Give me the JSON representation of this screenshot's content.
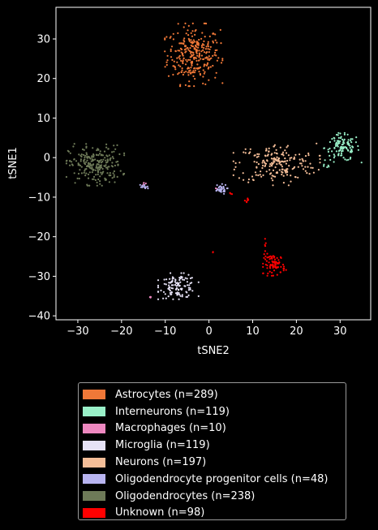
{
  "chart_data": {
    "type": "scatter",
    "xlabel": "tSNE2",
    "ylabel": "tSNE1",
    "xlim": [
      -35,
      37
    ],
    "ylim": [
      -41,
      38
    ],
    "xticks": [
      -30,
      -20,
      -10,
      0,
      10,
      20,
      30
    ],
    "yticks": [
      -40,
      -30,
      -20,
      -10,
      0,
      10,
      20,
      30
    ],
    "background": "#000000",
    "legend_position": "below",
    "series": [
      {
        "name": "Astrocytes (n=289)",
        "color": "#f07838",
        "n": 289,
        "clusters": [
          {
            "cx": -3.5,
            "cy": 26,
            "sx": 3.0,
            "sy": 3.6,
            "n": 289
          }
        ]
      },
      {
        "name": "Interneurons (n=119)",
        "color": "#99f0c8",
        "n": 119,
        "clusters": [
          {
            "cx": 30.5,
            "cy": 2.5,
            "sx": 2.0,
            "sy": 1.7,
            "n": 114
          },
          {
            "cx": 27.0,
            "cy": -2.2,
            "sx": 0.5,
            "sy": 0.3,
            "n": 5
          }
        ]
      },
      {
        "name": "Macrophages (n=10)",
        "color": "#ee88c0",
        "n": 10,
        "clusters": [
          {
            "cx": -13.5,
            "cy": -35.3,
            "sx": 0.15,
            "sy": 0.2,
            "n": 4
          },
          {
            "cx": -14.8,
            "cy": -7.0,
            "sx": 0.25,
            "sy": 0.3,
            "n": 4
          },
          {
            "cx": 1.8,
            "cy": -8.3,
            "sx": 0.3,
            "sy": 0.3,
            "n": 2
          }
        ]
      },
      {
        "name": "Microglia (n=119)",
        "color": "#e6e2f6",
        "n": 119,
        "clusters": [
          {
            "cx": -7.0,
            "cy": -32.5,
            "sx": 2.1,
            "sy": 1.5,
            "n": 119
          }
        ]
      },
      {
        "name": "Neurons (n=197)",
        "color": "#f5be98",
        "n": 197,
        "clusters": [
          {
            "cx": 15.5,
            "cy": -1.5,
            "sx": 4.5,
            "sy": 2.5,
            "n": 197
          }
        ]
      },
      {
        "name": "Oligodendrocyte progenitor cells (n=48)",
        "color": "#b8b4f0",
        "n": 48,
        "clusters": [
          {
            "cx": 2.5,
            "cy": -8.0,
            "sx": 0.8,
            "sy": 0.6,
            "n": 36
          },
          {
            "cx": -15.0,
            "cy": -7.5,
            "sx": 0.6,
            "sy": 0.4,
            "n": 12
          }
        ]
      },
      {
        "name": "Oligodendrocytes (n=238)",
        "color": "#6e7a58",
        "n": 238,
        "clusters": [
          {
            "cx": -26.0,
            "cy": -1.8,
            "sx": 3.0,
            "sy": 2.4,
            "n": 238
          }
        ]
      },
      {
        "name": "Unknown (n=98)",
        "color": "#ff0000",
        "n": 98,
        "clusters": [
          {
            "cx": 15.0,
            "cy": -27.0,
            "sx": 1.2,
            "sy": 1.3,
            "n": 80
          },
          {
            "cx": 13.0,
            "cy": -22.5,
            "sx": 0.4,
            "sy": 0.9,
            "n": 6
          },
          {
            "cx": 8.5,
            "cy": -10.8,
            "sx": 0.3,
            "sy": 0.3,
            "n": 7
          },
          {
            "cx": 5.0,
            "cy": -9.3,
            "sx": 0.3,
            "sy": 0.2,
            "n": 3
          },
          {
            "cx": 1.0,
            "cy": -23.8,
            "sx": 0.1,
            "sy": 0.1,
            "n": 2
          }
        ]
      }
    ]
  }
}
